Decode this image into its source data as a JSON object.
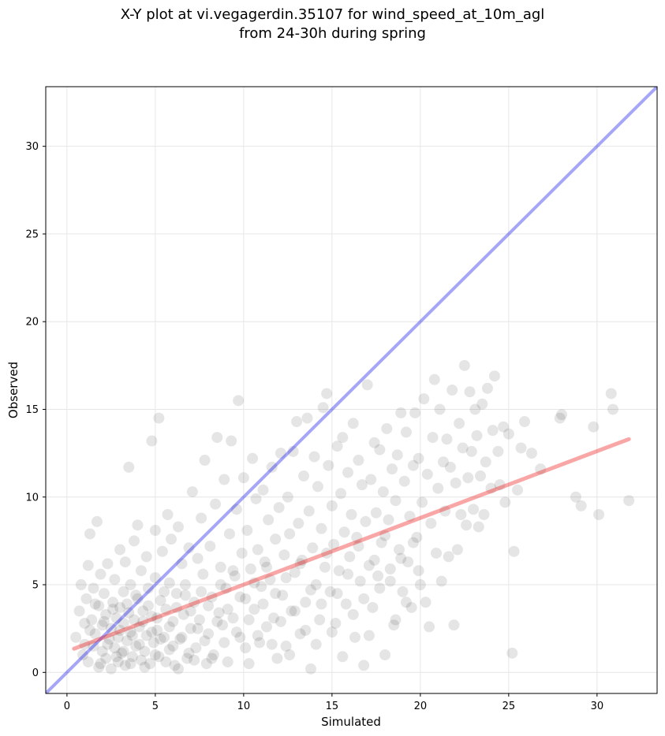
{
  "chart_data": {
    "type": "scatter",
    "title_line1": "X-Y plot at vi.vegagerdin.35107 for wind_speed_at_10m_agl",
    "title_line2": "from 24-30h during spring",
    "xlabel": "Simulated",
    "ylabel": "Observed",
    "xlim": [
      -1.2,
      33.4
    ],
    "ylim": [
      -1.2,
      33.4
    ],
    "xticks": [
      0,
      5,
      10,
      15,
      20,
      25,
      30
    ],
    "yticks": [
      0,
      5,
      10,
      15,
      20,
      25,
      30
    ],
    "grid": true,
    "point_color": "#000000",
    "point_alpha": 0.1,
    "identity_line": {
      "x": [
        -1.2,
        33.4
      ],
      "y": [
        -1.2,
        33.4
      ],
      "color": "#0000ee",
      "alpha": 0.35
    },
    "fit_line": {
      "x": [
        0.4,
        31.8
      ],
      "y": [
        1.35,
        13.3
      ],
      "color": "#ee0000",
      "alpha": 0.35
    },
    "points": [
      [
        0.5,
        2.0
      ],
      [
        0.7,
        3.5
      ],
      [
        0.8,
        5.0
      ],
      [
        0.9,
        1.0
      ],
      [
        1.0,
        2.8
      ],
      [
        1.1,
        4.2
      ],
      [
        1.2,
        0.6
      ],
      [
        1.2,
        6.1
      ],
      [
        1.3,
        7.9
      ],
      [
        1.4,
        3.0
      ],
      [
        1.5,
        1.5
      ],
      [
        1.5,
        4.8
      ],
      [
        1.6,
        2.2
      ],
      [
        1.7,
        8.6
      ],
      [
        1.8,
        0.3
      ],
      [
        1.8,
        3.8
      ],
      [
        1.9,
        5.6
      ],
      [
        2.0,
        1.2
      ],
      [
        2.0,
        2.7
      ],
      [
        2.1,
        4.5
      ],
      [
        2.2,
        0.8
      ],
      [
        2.2,
        3.3
      ],
      [
        2.3,
        6.2
      ],
      [
        2.4,
        1.9
      ],
      [
        2.5,
        0.2
      ],
      [
        2.5,
        2.5
      ],
      [
        2.6,
        4.0
      ],
      [
        2.7,
        1.4
      ],
      [
        2.7,
        5.3
      ],
      [
        2.8,
        3.1
      ],
      [
        2.9,
        0.6
      ],
      [
        2.9,
        2.0
      ],
      [
        3.0,
        3.7
      ],
      [
        3.0,
        7.0
      ],
      [
        3.1,
        1.1
      ],
      [
        3.2,
        2.8
      ],
      [
        3.2,
        4.6
      ],
      [
        3.3,
        0.4
      ],
      [
        3.3,
        6.3
      ],
      [
        3.4,
        1.8
      ],
      [
        3.5,
        11.7
      ],
      [
        3.5,
        3.4
      ],
      [
        3.6,
        2.3
      ],
      [
        3.6,
        5.0
      ],
      [
        3.7,
        0.9
      ],
      [
        3.8,
        3.0
      ],
      [
        3.8,
        7.5
      ],
      [
        3.9,
        1.5
      ],
      [
        4.0,
        4.2
      ],
      [
        4.0,
        8.4
      ],
      [
        4.1,
        2.6
      ],
      [
        4.2,
        0.7
      ],
      [
        4.2,
        5.8
      ],
      [
        4.3,
        3.5
      ],
      [
        4.4,
        1.2
      ],
      [
        4.5,
        2.1
      ],
      [
        4.5,
        6.6
      ],
      [
        4.6,
        4.8
      ],
      [
        4.7,
        0.5
      ],
      [
        4.8,
        13.2
      ],
      [
        4.8,
        3.2
      ],
      [
        4.9,
        1.7
      ],
      [
        5.0,
        5.4
      ],
      [
        5.0,
        8.1
      ],
      [
        5.1,
        2.4
      ],
      [
        5.2,
        14.5
      ],
      [
        5.2,
        0.9
      ],
      [
        5.3,
        4.1
      ],
      [
        5.4,
        6.9
      ],
      [
        5.5,
        2.0
      ],
      [
        5.6,
        3.6
      ],
      [
        5.7,
        9.0
      ],
      [
        5.8,
        1.3
      ],
      [
        5.8,
        5.1
      ],
      [
        5.9,
        7.6
      ],
      [
        6.0,
        2.9
      ],
      [
        6.1,
        0.4
      ],
      [
        6.2,
        4.5
      ],
      [
        6.3,
        8.3
      ],
      [
        6.4,
        1.9
      ],
      [
        6.5,
        6.2
      ],
      [
        6.6,
        3.3
      ],
      [
        6.7,
        5.0
      ],
      [
        6.8,
        0.8
      ],
      [
        6.9,
        7.1
      ],
      [
        7.0,
        2.5
      ],
      [
        7.1,
        10.3
      ],
      [
        7.2,
        4.0
      ],
      [
        7.3,
        1.4
      ],
      [
        7.4,
        6.5
      ],
      [
        7.5,
        3.0
      ],
      [
        7.6,
        8.8
      ],
      [
        7.7,
        5.6
      ],
      [
        7.8,
        12.1
      ],
      [
        7.9,
        0.5
      ],
      [
        8.0,
        2.2
      ],
      [
        8.1,
        7.2
      ],
      [
        8.2,
        4.3
      ],
      [
        8.3,
        1.0
      ],
      [
        8.4,
        9.6
      ],
      [
        8.5,
        13.4
      ],
      [
        8.6,
        3.4
      ],
      [
        8.7,
        6.0
      ],
      [
        8.8,
        2.7
      ],
      [
        8.9,
        11.0
      ],
      [
        9.0,
        4.8
      ],
      [
        9.1,
        0.6
      ],
      [
        9.2,
        7.9
      ],
      [
        9.3,
        13.2
      ],
      [
        9.4,
        3.1
      ],
      [
        9.5,
        5.5
      ],
      [
        9.6,
        9.3
      ],
      [
        9.7,
        15.5
      ],
      [
        9.8,
        2.0
      ],
      [
        9.9,
        6.8
      ],
      [
        10.0,
        11.1
      ],
      [
        10.1,
        4.2
      ],
      [
        10.2,
        8.1
      ],
      [
        10.3,
        0.5
      ],
      [
        10.4,
        5.9
      ],
      [
        10.5,
        12.2
      ],
      [
        10.6,
        3.6
      ],
      [
        10.7,
        9.9
      ],
      [
        10.8,
        7.0
      ],
      [
        10.9,
        1.7
      ],
      [
        11.0,
        4.9
      ],
      [
        11.1,
        10.4
      ],
      [
        11.2,
        6.3
      ],
      [
        11.3,
        2.6
      ],
      [
        11.4,
        8.7
      ],
      [
        11.5,
        5.3
      ],
      [
        11.6,
        11.7
      ],
      [
        11.7,
        3.1
      ],
      [
        11.8,
        7.6
      ],
      [
        11.9,
        0.8
      ],
      [
        12.0,
        9.4
      ],
      [
        12.1,
        12.5
      ],
      [
        12.2,
        4.4
      ],
      [
        12.3,
        6.7
      ],
      [
        12.4,
        1.5
      ],
      [
        12.5,
        10.0
      ],
      [
        12.6,
        7.9
      ],
      [
        12.7,
        3.5
      ],
      [
        12.8,
        12.6
      ],
      [
        12.9,
        5.7
      ],
      [
        13.0,
        14.3
      ],
      [
        13.1,
        8.5
      ],
      [
        13.2,
        2.2
      ],
      [
        13.3,
        6.4
      ],
      [
        13.4,
        11.2
      ],
      [
        13.5,
        4.0
      ],
      [
        13.6,
        14.5
      ],
      [
        13.7,
        9.2
      ],
      [
        13.8,
        0.2
      ],
      [
        13.9,
        7.1
      ],
      [
        14.0,
        12.3
      ],
      [
        14.1,
        5.0
      ],
      [
        14.2,
        10.6
      ],
      [
        14.3,
        3.0
      ],
      [
        14.4,
        8.2
      ],
      [
        14.5,
        15.1
      ],
      [
        14.6,
        6.0
      ],
      [
        14.7,
        15.9
      ],
      [
        14.8,
        11.8
      ],
      [
        14.9,
        4.6
      ],
      [
        15.0,
        9.5
      ],
      [
        15.1,
        7.3
      ],
      [
        15.2,
        2.8
      ],
      [
        15.3,
        12.9
      ],
      [
        15.4,
        5.8
      ],
      [
        15.5,
        10.2
      ],
      [
        15.6,
        13.4
      ],
      [
        15.7,
        8.0
      ],
      [
        15.8,
        3.9
      ],
      [
        15.9,
        11.4
      ],
      [
        16.0,
        6.6
      ],
      [
        16.1,
        9.0
      ],
      [
        16.2,
        14.2
      ],
      [
        16.3,
        2.0
      ],
      [
        16.4,
        7.7
      ],
      [
        16.5,
        12.1
      ],
      [
        16.6,
        5.2
      ],
      [
        16.7,
        10.7
      ],
      [
        16.8,
        0.4
      ],
      [
        16.9,
        8.6
      ],
      [
        17.0,
        16.4
      ],
      [
        17.1,
        6.1
      ],
      [
        17.2,
        11.0
      ],
      [
        17.3,
        3.7
      ],
      [
        17.4,
        13.1
      ],
      [
        17.5,
        9.1
      ],
      [
        17.6,
        5.5
      ],
      [
        17.7,
        12.7
      ],
      [
        17.8,
        7.4
      ],
      [
        17.9,
        10.3
      ],
      [
        18.0,
        1.0
      ],
      [
        18.1,
        13.9
      ],
      [
        18.2,
        8.7
      ],
      [
        18.3,
        5.9
      ],
      [
        18.4,
        11.6
      ],
      [
        18.5,
        2.7
      ],
      [
        18.6,
        9.8
      ],
      [
        18.7,
        12.4
      ],
      [
        18.8,
        7.0
      ],
      [
        18.9,
        14.8
      ],
      [
        19.0,
        4.6
      ],
      [
        19.1,
        10.9
      ],
      [
        19.2,
        13.7
      ],
      [
        19.3,
        6.3
      ],
      [
        19.4,
        8.9
      ],
      [
        19.5,
        3.7
      ],
      [
        19.6,
        11.8
      ],
      [
        19.7,
        14.8
      ],
      [
        19.8,
        7.7
      ],
      [
        19.9,
        12.2
      ],
      [
        20.0,
        5.0
      ],
      [
        20.1,
        9.7
      ],
      [
        20.2,
        15.6
      ],
      [
        20.3,
        4.0
      ],
      [
        20.4,
        11.3
      ],
      [
        20.5,
        2.6
      ],
      [
        20.6,
        8.5
      ],
      [
        20.7,
        13.4
      ],
      [
        20.8,
        16.7
      ],
      [
        20.9,
        6.8
      ],
      [
        21.0,
        10.5
      ],
      [
        21.1,
        15.0
      ],
      [
        21.2,
        5.2
      ],
      [
        21.3,
        12.0
      ],
      [
        21.4,
        9.2
      ],
      [
        21.5,
        13.3
      ],
      [
        21.6,
        6.6
      ],
      [
        21.7,
        11.7
      ],
      [
        21.8,
        16.1
      ],
      [
        21.9,
        2.7
      ],
      [
        22.0,
        10.8
      ],
      [
        22.1,
        7.0
      ],
      [
        22.2,
        14.2
      ],
      [
        22.3,
        9.0
      ],
      [
        22.4,
        12.8
      ],
      [
        22.5,
        17.5
      ],
      [
        22.6,
        8.4
      ],
      [
        22.7,
        11.1
      ],
      [
        22.8,
        16.0
      ],
      [
        22.9,
        12.6
      ],
      [
        23.0,
        9.3
      ],
      [
        23.1,
        15.0
      ],
      [
        23.2,
        13.5
      ],
      [
        23.3,
        8.3
      ],
      [
        23.4,
        11.2
      ],
      [
        23.5,
        15.3
      ],
      [
        23.6,
        9.0
      ],
      [
        23.7,
        12.0
      ],
      [
        23.8,
        16.2
      ],
      [
        24.0,
        10.5
      ],
      [
        24.1,
        13.8
      ],
      [
        24.2,
        16.9
      ],
      [
        24.4,
        12.6
      ],
      [
        24.5,
        10.7
      ],
      [
        24.7,
        14.0
      ],
      [
        24.8,
        9.7
      ],
      [
        25.0,
        13.6
      ],
      [
        25.2,
        1.1
      ],
      [
        25.3,
        6.9
      ],
      [
        25.5,
        10.4
      ],
      [
        25.7,
        12.8
      ],
      [
        25.9,
        14.3
      ],
      [
        26.3,
        12.5
      ],
      [
        26.8,
        11.6
      ],
      [
        27.9,
        14.5
      ],
      [
        28.0,
        14.7
      ],
      [
        28.8,
        10.0
      ],
      [
        29.1,
        9.5
      ],
      [
        29.8,
        14.0
      ],
      [
        30.1,
        9.0
      ],
      [
        30.8,
        15.9
      ],
      [
        30.9,
        15.0
      ],
      [
        31.8,
        9.8
      ],
      [
        1.0,
        1.6
      ],
      [
        1.3,
        2.4
      ],
      [
        1.6,
        3.9
      ],
      [
        1.9,
        0.5
      ],
      [
        2.1,
        2.9
      ],
      [
        2.3,
        1.6
      ],
      [
        2.6,
        3.6
      ],
      [
        2.8,
        0.9
      ],
      [
        3.0,
        2.4
      ],
      [
        3.2,
        1.2
      ],
      [
        3.4,
        3.9
      ],
      [
        3.6,
        0.5
      ],
      [
        3.7,
        2.1
      ],
      [
        3.9,
        4.4
      ],
      [
        4.1,
        1.6
      ],
      [
        4.3,
        2.9
      ],
      [
        4.4,
        0.3
      ],
      [
        4.6,
        3.8
      ],
      [
        4.8,
        2.3
      ],
      [
        5.0,
        1.0
      ],
      [
        5.1,
        3.1
      ],
      [
        5.3,
        1.9
      ],
      [
        5.5,
        4.6
      ],
      [
        5.6,
        0.6
      ],
      [
        5.8,
        2.6
      ],
      [
        6.0,
        1.5
      ],
      [
        6.2,
        3.7
      ],
      [
        6.3,
        0.2
      ],
      [
        6.5,
        2.0
      ],
      [
        6.7,
        4.4
      ],
      [
        6.9,
        1.1
      ],
      [
        7.0,
        3.5
      ],
      [
        7.2,
        0.7
      ],
      [
        7.4,
        2.5
      ],
      [
        7.6,
        4.6
      ],
      [
        7.8,
        1.8
      ],
      [
        8.0,
        3.8
      ],
      [
        8.2,
        0.8
      ],
      [
        8.5,
        2.9
      ],
      [
        8.7,
        5.0
      ],
      [
        8.9,
        1.7
      ],
      [
        9.1,
        3.6
      ],
      [
        9.4,
        5.8
      ],
      [
        9.6,
        2.3
      ],
      [
        9.8,
        4.3
      ],
      [
        10.1,
        1.4
      ],
      [
        10.3,
        3.0
      ],
      [
        10.6,
        5.1
      ],
      [
        10.8,
        2.1
      ],
      [
        11.1,
        3.9
      ],
      [
        11.3,
        6.0
      ],
      [
        11.6,
        1.6
      ],
      [
        11.8,
        4.5
      ],
      [
        12.1,
        2.9
      ],
      [
        12.4,
        5.4
      ],
      [
        12.6,
        1.0
      ],
      [
        12.9,
        3.5
      ],
      [
        13.2,
        6.2
      ],
      [
        13.5,
        2.4
      ],
      [
        13.8,
        4.7
      ],
      [
        14.1,
        1.6
      ],
      [
        14.4,
        3.9
      ],
      [
        14.7,
        6.8
      ],
      [
        15.0,
        2.3
      ],
      [
        15.3,
        4.5
      ],
      [
        15.6,
        0.9
      ],
      [
        15.9,
        5.6
      ],
      [
        16.2,
        3.3
      ],
      [
        16.5,
        7.2
      ],
      [
        16.8,
        4.2
      ],
      [
        17.1,
        2.1
      ],
      [
        17.4,
        6.4
      ],
      [
        17.7,
        4.8
      ],
      [
        18.0,
        7.8
      ],
      [
        18.3,
        5.2
      ],
      [
        18.6,
        3.0
      ],
      [
        18.9,
        6.5
      ],
      [
        19.2,
        4.0
      ],
      [
        19.6,
        7.4
      ],
      [
        19.9,
        5.8
      ]
    ]
  }
}
